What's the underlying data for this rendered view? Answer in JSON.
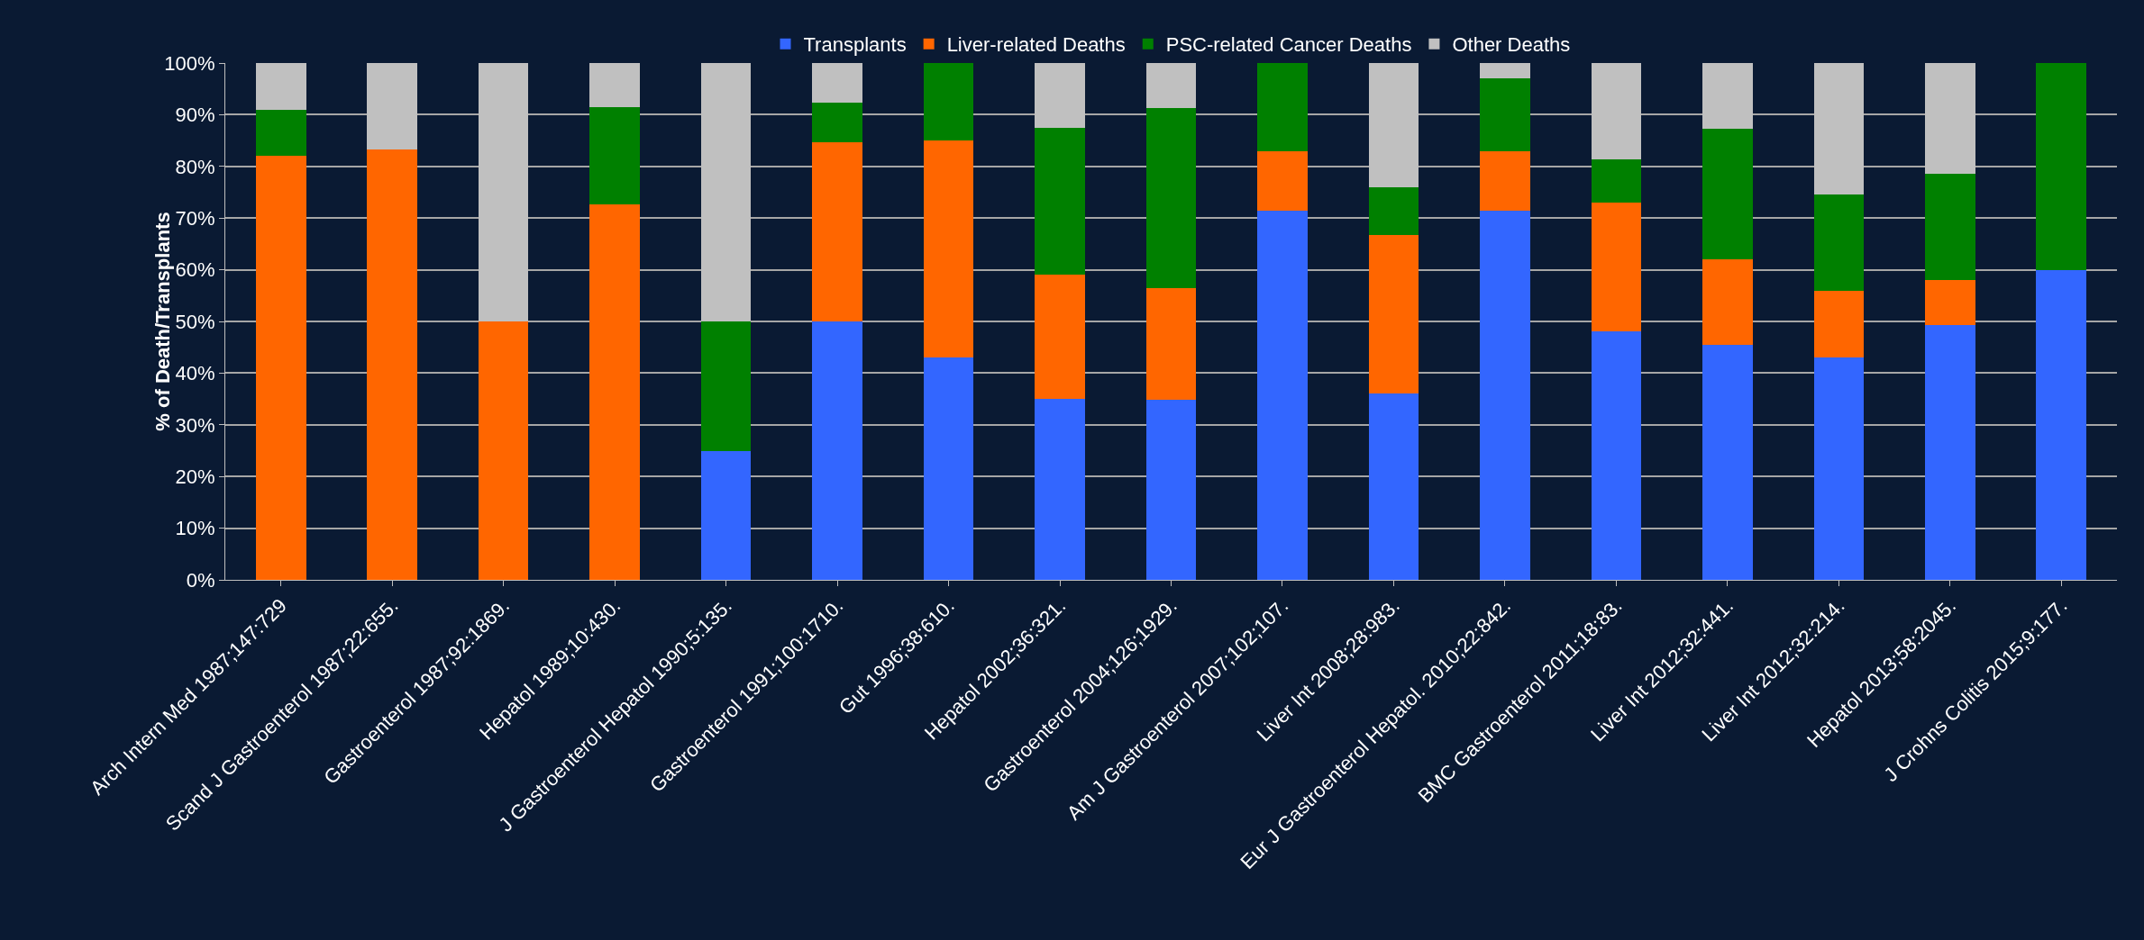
{
  "chart_data": {
    "type": "bar",
    "stacked": true,
    "ylabel": "% of Death/Transplants",
    "categories": [
      "Arch Intern Med 1987;147:729",
      "Scand J Gastroenterol 1987;22:655.",
      "Gastroenterol 1987;92:1869.",
      "Hepatol 1989;10:430.",
      "J Gastroenterol Hepatol 1990;5:135.",
      "Gastroenterol 1991;100:1710.",
      "Gut 1996;38:610.",
      "Hepatol 2002;36:321.",
      "Gastroenterol 2004;126;1929.",
      "Am J Gastroenterol 2007;102;107.",
      "Liver Int 2008;28:983.",
      "Eur J Gastroenterol Hepatol. 2010;22:842.",
      "BMC Gastroenterol 2011;18:83.",
      "Liver Int 2012;32:441.",
      "Liver Int 2012;32:214.",
      "Hepatol 2013;58:2045.",
      "J Crohns Colitis 2015;9:177."
    ],
    "series": [
      {
        "name": "Transplants",
        "color": "#3366ff",
        "values": [
          0,
          0,
          0,
          0,
          25,
          50,
          43,
          35,
          34.8,
          71.5,
          36,
          71.5,
          48,
          45.5,
          43,
          49.3,
          60
        ]
      },
      {
        "name": "Liver-related Deaths",
        "color": "#ff6600",
        "values": [
          82,
          83.3,
          50,
          72.7,
          0,
          34.6,
          42,
          24,
          21.7,
          11.5,
          30.7,
          11.5,
          25,
          16.5,
          13,
          8.7,
          0
        ]
      },
      {
        "name": "PSC-related Cancer Deaths",
        "color": "#008000",
        "values": [
          9,
          0,
          0,
          18.8,
          25,
          7.7,
          15,
          28.5,
          34.8,
          17,
          9.3,
          14,
          8.3,
          25.3,
          18.5,
          20.5,
          40
        ]
      },
      {
        "name": "Other Deaths",
        "color": "#c0c0c0",
        "values": [
          9,
          16.7,
          50,
          8.5,
          50,
          7.7,
          0,
          12.5,
          8.7,
          0,
          24,
          3,
          18.7,
          12.7,
          25.5,
          21.5,
          0
        ]
      }
    ],
    "ylim": [
      0,
      100
    ],
    "yticks": [
      {
        "value": 0,
        "label": "0%"
      },
      {
        "value": 10,
        "label": "10%"
      },
      {
        "value": 20,
        "label": "20%"
      },
      {
        "value": 30,
        "label": "30%"
      },
      {
        "value": 40,
        "label": "40%"
      },
      {
        "value": 50,
        "label": "50%"
      },
      {
        "value": 60,
        "label": "60%"
      },
      {
        "value": 70,
        "label": "70%"
      },
      {
        "value": 80,
        "label": "80%"
      },
      {
        "value": 90,
        "label": "90%"
      },
      {
        "value": 100,
        "label": "100%"
      }
    ],
    "grid": "y",
    "legend": "top"
  }
}
